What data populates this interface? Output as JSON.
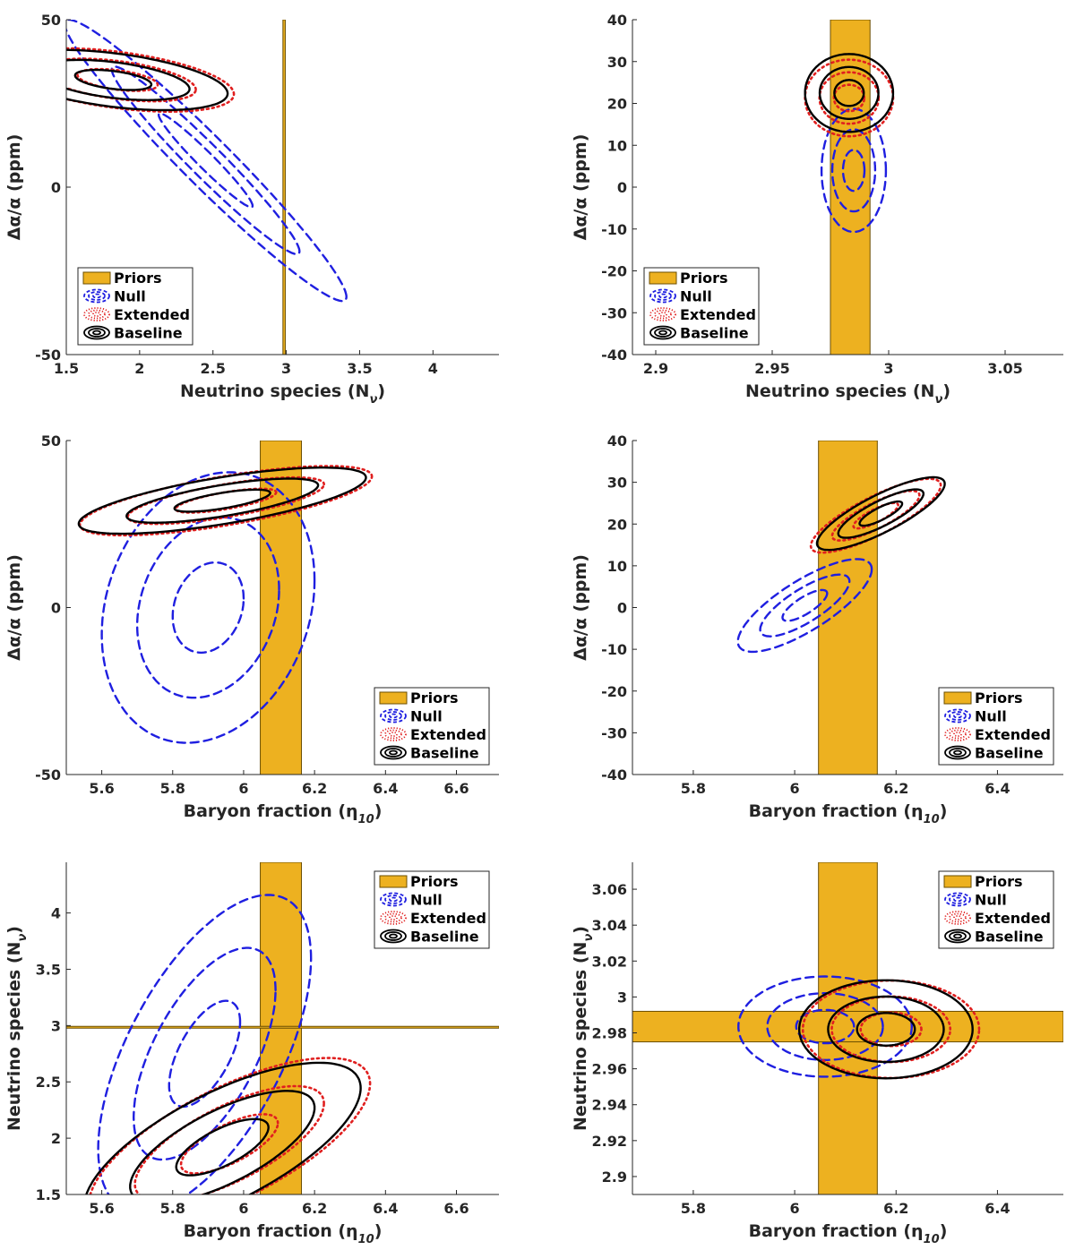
{
  "figure": {
    "description_free": true
  },
  "legend_items": [
    "Priors",
    "Null",
    "Extended",
    "Baseline"
  ],
  "colors": {
    "priors": "#EDB120",
    "priors_edge": "#6b4e00",
    "null": "#1f1fe0",
    "extended": "#e01f1f",
    "baseline": "#000000",
    "axis": "#262626"
  },
  "chart_data": [
    {
      "type": "contour",
      "xlabel": "Neutrino species (N",
      "xsub": "ν",
      "xsuffix": ")",
      "ylabel": "Δα/α (ppm)",
      "xlim": [
        1.5,
        4.45
      ],
      "ylim": [
        -50,
        50
      ],
      "xticks": [
        1.5,
        2,
        2.5,
        3,
        3.5,
        4
      ],
      "xticklabels": [
        "1.5",
        "2",
        "2.5",
        "3",
        "3.5",
        "4"
      ],
      "yticks": [
        -50,
        0,
        50
      ],
      "yticklabels": [
        "-50",
        "0",
        "50"
      ],
      "legend": "bottom-left",
      "priors": [
        {
          "orient": "v",
          "center": 2.985,
          "half": 0.008
        }
      ],
      "series": [
        {
          "name": "Null",
          "style": "dashed",
          "cx": 2.45,
          "cy": 8,
          "sx": 0.32,
          "sy": 14,
          "rho": -0.97,
          "levels": [
            1,
            2,
            3
          ]
        },
        {
          "name": "Extended",
          "style": "dotted",
          "cx": 1.85,
          "cy": 32,
          "sx": 0.26,
          "sy": 3.1,
          "rho": -0.45,
          "levels": [
            1.05,
            2.05,
            3.05
          ]
        },
        {
          "name": "Baseline",
          "style": "solid",
          "cx": 1.82,
          "cy": 32,
          "sx": 0.26,
          "sy": 3.0,
          "rho": -0.45,
          "levels": [
            1,
            2,
            3
          ]
        }
      ]
    },
    {
      "type": "contour",
      "xlabel": "Neutrino species (N",
      "xsub": "ν",
      "xsuffix": ")",
      "ylabel": "Δα/α (ppm)",
      "xlim": [
        2.89,
        3.075
      ],
      "ylim": [
        -40,
        40
      ],
      "xticks": [
        2.9,
        2.95,
        3,
        3.05
      ],
      "xticklabels": [
        "2.9",
        "2.95",
        "3",
        "3.05"
      ],
      "yticks": [
        -40,
        -30,
        -20,
        -10,
        0,
        10,
        20,
        30,
        40
      ],
      "yticklabels": [
        "-40",
        "-30",
        "-20",
        "-10",
        "0",
        "10",
        "20",
        "30",
        "40"
      ],
      "legend": "bottom-left",
      "priors": [
        {
          "orient": "v",
          "center": 2.9835,
          "half": 0.0085
        }
      ],
      "series": [
        {
          "name": "Null",
          "style": "dashed",
          "cx": 2.985,
          "cy": 4,
          "sx": 0.0046,
          "sy": 4.9,
          "rho": 0,
          "levels": [
            1,
            2,
            3
          ]
        },
        {
          "name": "Extended",
          "style": "dotted",
          "cx": 2.983,
          "cy": 21.3,
          "sx": 0.0062,
          "sy": 3.0,
          "rho": 0,
          "levels": [
            1.05,
            2.05,
            3.05
          ]
        },
        {
          "name": "Baseline",
          "style": "solid",
          "cx": 2.983,
          "cy": 22.5,
          "sx": 0.0063,
          "sy": 3.1,
          "rho": 0,
          "levels": [
            1,
            2,
            3
          ]
        }
      ]
    },
    {
      "type": "contour",
      "xlabel": "Baryon fraction (η",
      "xsub": "10",
      "xsuffix": ")",
      "ylabel": "Δα/α (ppm)",
      "xlim": [
        5.5,
        6.72
      ],
      "ylim": [
        -50,
        50
      ],
      "xticks": [
        5.6,
        5.8,
        6,
        6.2,
        6.4,
        6.6
      ],
      "xticklabels": [
        "5.6",
        "5.8",
        "6",
        "6.2",
        "6.4",
        "6.6"
      ],
      "yticks": [
        -50,
        0,
        50
      ],
      "yticklabels": [
        "-50",
        "0",
        "50"
      ],
      "legend": "bottom-right",
      "priors": [
        {
          "orient": "v",
          "center": 6.105,
          "half": 0.058
        }
      ],
      "series": [
        {
          "name": "Null",
          "style": "dashed",
          "cx": 5.9,
          "cy": 0,
          "sx": 0.1,
          "sy": 13.5,
          "rho": 0.2,
          "levels": [
            1,
            2,
            3
          ]
        },
        {
          "name": "Extended",
          "style": "dotted",
          "cx": 5.95,
          "cy": 32,
          "sx": 0.135,
          "sy": 3.4,
          "rho": 0.7,
          "levels": [
            1.05,
            2.05,
            3.05
          ]
        },
        {
          "name": "Baseline",
          "style": "solid",
          "cx": 5.94,
          "cy": 32,
          "sx": 0.135,
          "sy": 3.3,
          "rho": 0.7,
          "levels": [
            1,
            2,
            3
          ]
        }
      ]
    },
    {
      "type": "contour",
      "xlabel": "Baryon fraction (η",
      "xsub": "10",
      "xsuffix": ")",
      "ylabel": "Δα/α (ppm)",
      "xlim": [
        5.68,
        6.53
      ],
      "ylim": [
        -40,
        40
      ],
      "xticks": [
        5.8,
        6,
        6.2,
        6.4
      ],
      "xticklabels": [
        "5.8",
        "6",
        "6.2",
        "6.4"
      ],
      "yticks": [
        -40,
        -30,
        -20,
        -10,
        0,
        10,
        20,
        30,
        40
      ],
      "yticklabels": [
        "-40",
        "-30",
        "-20",
        "-10",
        "0",
        "10",
        "20",
        "30",
        "40"
      ],
      "legend": "bottom-right",
      "priors": [
        {
          "orient": "v",
          "center": 6.105,
          "half": 0.058
        }
      ],
      "series": [
        {
          "name": "Null",
          "style": "dashed",
          "cx": 6.02,
          "cy": 0.5,
          "sx": 0.044,
          "sy": 3.7,
          "rho": 0.78,
          "levels": [
            1,
            2,
            3
          ]
        },
        {
          "name": "Extended",
          "style": "dotted",
          "cx": 6.16,
          "cy": 22,
          "sx": 0.042,
          "sy": 2.9,
          "rho": 0.82,
          "levels": [
            1.05,
            2.05,
            3.05
          ]
        },
        {
          "name": "Baseline",
          "style": "solid",
          "cx": 6.17,
          "cy": 22.5,
          "sx": 0.042,
          "sy": 2.9,
          "rho": 0.82,
          "levels": [
            1,
            2,
            3
          ]
        }
      ]
    },
    {
      "type": "contour",
      "xlabel": "Baryon fraction (η",
      "xsub": "10",
      "xsuffix": ")",
      "ylabel": "Neutrino species (N",
      "ysub": "ν",
      "ysuffix": ")",
      "xlim": [
        5.5,
        6.72
      ],
      "ylim": [
        1.5,
        4.45
      ],
      "xticks": [
        5.6,
        5.8,
        6,
        6.2,
        6.4,
        6.6
      ],
      "xticklabels": [
        "5.6",
        "5.8",
        "6",
        "6.2",
        "6.4",
        "6.6"
      ],
      "yticks": [
        1.5,
        2,
        2.5,
        3,
        3.5,
        4
      ],
      "yticklabels": [
        "1.5",
        "2",
        "2.5",
        "3",
        "3.5",
        "4"
      ],
      "legend": "top-right",
      "priors": [
        {
          "orient": "v",
          "center": 6.105,
          "half": 0.058
        },
        {
          "orient": "h",
          "center": 2.985,
          "half": 0.008
        }
      ],
      "series": [
        {
          "name": "Null",
          "style": "dashed",
          "cx": 5.89,
          "cy": 2.75,
          "sx": 0.1,
          "sy": 0.47,
          "rho": 0.6,
          "levels": [
            1,
            2,
            3
          ]
        },
        {
          "name": "Extended",
          "style": "dotted",
          "cx": 5.96,
          "cy": 1.95,
          "sx": 0.13,
          "sy": 0.25,
          "rho": 0.7,
          "levels": [
            1.05,
            2.05,
            3.05
          ]
        },
        {
          "name": "Baseline",
          "style": "solid",
          "cx": 5.94,
          "cy": 1.92,
          "sx": 0.13,
          "sy": 0.25,
          "rho": 0.7,
          "levels": [
            1,
            2,
            3
          ]
        }
      ]
    },
    {
      "type": "contour",
      "xlabel": "Baryon fraction (η",
      "xsub": "10",
      "xsuffix": ")",
      "ylabel": "Neutrino species (N",
      "ysub": "ν",
      "ysuffix": ")",
      "xlim": [
        5.68,
        6.53
      ],
      "ylim": [
        2.89,
        3.075
      ],
      "xticks": [
        5.8,
        6,
        6.2,
        6.4
      ],
      "xticklabels": [
        "5.8",
        "6",
        "6.2",
        "6.4"
      ],
      "yticks": [
        2.9,
        2.92,
        2.94,
        2.96,
        2.98,
        3,
        3.02,
        3.04,
        3.06
      ],
      "yticklabels": [
        "2.9",
        "2.92",
        "2.94",
        "2.96",
        "2.98",
        "3",
        "3.02",
        "3.04",
        "3.06"
      ],
      "legend": "top-right",
      "priors": [
        {
          "orient": "v",
          "center": 6.105,
          "half": 0.058
        },
        {
          "orient": "h",
          "center": 2.9835,
          "half": 0.0085
        }
      ],
      "series": [
        {
          "name": "Null",
          "style": "dashed",
          "cx": 6.06,
          "cy": 2.9835,
          "sx": 0.057,
          "sy": 0.0093,
          "rho": 0,
          "levels": [
            1,
            2,
            3
          ]
        },
        {
          "name": "Extended",
          "style": "dotted",
          "cx": 6.19,
          "cy": 2.982,
          "sx": 0.057,
          "sy": 0.0089,
          "rho": 0,
          "levels": [
            1.05,
            2.05,
            3.05
          ]
        },
        {
          "name": "Baseline",
          "style": "solid",
          "cx": 6.18,
          "cy": 2.982,
          "sx": 0.057,
          "sy": 0.0091,
          "rho": 0,
          "levels": [
            1,
            2,
            3
          ]
        }
      ]
    }
  ]
}
